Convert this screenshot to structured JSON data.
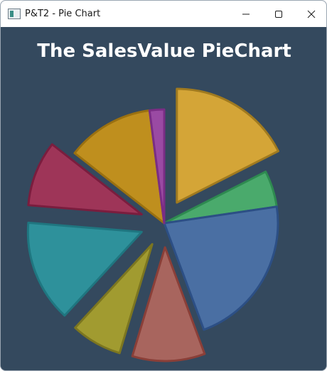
{
  "window": {
    "title": "P&T2 - Pie Chart",
    "app_icon": "window-app-icon",
    "controls": [
      {
        "name": "minimize",
        "icon": "minimize-icon"
      },
      {
        "name": "maximize",
        "icon": "maximize-icon"
      },
      {
        "name": "close",
        "icon": "close-icon"
      }
    ]
  },
  "background_color": "#34495e",
  "chart_data": {
    "type": "pie",
    "title": "The SalesValue PieChart",
    "start_angle_deg": 0,
    "direction": "clockwise from 12 o'clock",
    "slices": [
      {
        "value": 17,
        "color": "#d4a537",
        "border": "#a07a1f",
        "exploded": true
      },
      {
        "value": 5,
        "color": "#4aaa6c",
        "border": "#2e8a50",
        "exploded": false
      },
      {
        "value": 21,
        "color": "#4a6fa3",
        "border": "#2c4f85",
        "exploded": false
      },
      {
        "value": 10,
        "color": "#a8655e",
        "border": "#8a3f38",
        "exploded": true
      },
      {
        "value": 7,
        "color": "#a19b30",
        "border": "#7c7620",
        "exploded": true
      },
      {
        "value": 14,
        "color": "#2e919b",
        "border": "#1f7680",
        "exploded": true
      },
      {
        "value": 9,
        "color": "#9e3558",
        "border": "#7a1d3e",
        "exploded": true
      },
      {
        "value": 12,
        "color": "#bf8f1e",
        "border": "#9a7010",
        "exploded": false
      },
      {
        "value": 2,
        "color": "#9a4aa3",
        "border": "#7a2d85",
        "exploded": false
      }
    ]
  }
}
